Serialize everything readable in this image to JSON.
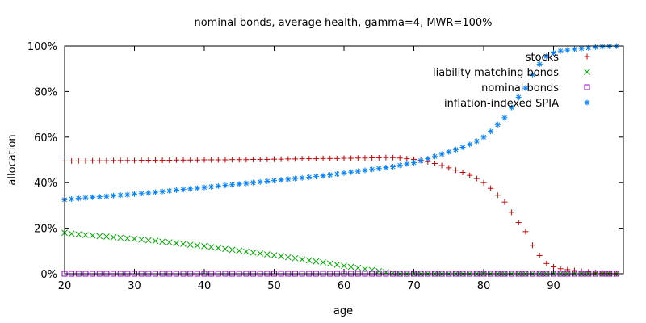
{
  "chart_data": {
    "type": "scatter",
    "title": "nominal bonds, average health, gamma=4, MWR=100%",
    "xlabel": "age",
    "ylabel": "allocation",
    "xlim": [
      20,
      100
    ],
    "ylim": [
      0,
      100
    ],
    "x_ticks": [
      "20",
      "30",
      "40",
      "50",
      "60",
      "70",
      "80",
      "90"
    ],
    "x_tick_values": [
      20,
      30,
      40,
      50,
      60,
      70,
      80,
      90
    ],
    "y_ticks": [
      "0%",
      "20%",
      "40%",
      "60%",
      "80%",
      "100%"
    ],
    "y_tick_values": [
      0,
      20,
      40,
      60,
      80,
      100
    ],
    "legend_position": "top-right",
    "x": [
      20,
      21,
      22,
      23,
      24,
      25,
      26,
      27,
      28,
      29,
      30,
      31,
      32,
      33,
      34,
      35,
      36,
      37,
      38,
      39,
      40,
      41,
      42,
      43,
      44,
      45,
      46,
      47,
      48,
      49,
      50,
      51,
      52,
      53,
      54,
      55,
      56,
      57,
      58,
      59,
      60,
      61,
      62,
      63,
      64,
      65,
      66,
      67,
      68,
      69,
      70,
      71,
      72,
      73,
      74,
      75,
      76,
      77,
      78,
      79,
      80,
      81,
      82,
      83,
      84,
      85,
      86,
      87,
      88,
      89,
      90,
      91,
      92,
      93,
      94,
      95,
      96,
      97,
      98,
      99
    ],
    "series": [
      {
        "name": "stocks",
        "marker": "plus",
        "color": "#cc0000",
        "values": [
          49.5,
          49.5,
          49.5,
          49.5,
          49.6,
          49.6,
          49.6,
          49.7,
          49.7,
          49.7,
          49.7,
          49.8,
          49.8,
          49.8,
          49.8,
          49.8,
          49.9,
          49.9,
          49.9,
          49.9,
          50.0,
          50.0,
          50.0,
          50.0,
          50.1,
          50.1,
          50.1,
          50.2,
          50.2,
          50.2,
          50.3,
          50.3,
          50.4,
          50.4,
          50.5,
          50.5,
          50.5,
          50.6,
          50.6,
          50.6,
          50.7,
          50.7,
          50.8,
          50.8,
          50.9,
          50.9,
          51.0,
          51.0,
          50.8,
          50.5,
          50.2,
          49.8,
          49.2,
          48.4,
          47.5,
          46.5,
          45.5,
          44.5,
          43.2,
          41.8,
          40.0,
          37.5,
          34.5,
          31.5,
          27.0,
          22.5,
          18.5,
          12.5,
          8.0,
          4.5,
          3.0,
          2.2,
          1.8,
          1.4,
          1.1,
          0.8,
          0.5,
          0.3,
          0.2,
          0.1
        ]
      },
      {
        "name": "liability matching bonds",
        "marker": "cross",
        "color": "#00aa00",
        "values": [
          18.0,
          17.6,
          17.3,
          17.0,
          16.8,
          16.5,
          16.3,
          16.0,
          15.8,
          15.5,
          15.3,
          15.0,
          14.7,
          14.4,
          14.1,
          13.8,
          13.4,
          13.1,
          12.7,
          12.4,
          12.1,
          11.7,
          11.3,
          10.9,
          10.5,
          10.1,
          9.7,
          9.3,
          8.9,
          8.5,
          8.1,
          7.7,
          7.2,
          6.8,
          6.3,
          5.9,
          5.4,
          5.0,
          4.5,
          4.0,
          3.5,
          3.0,
          2.6,
          2.1,
          1.6,
          1.1,
          0.7,
          0.2,
          0.0,
          0.0,
          0.0,
          0.0,
          0.0,
          0.0,
          0.0,
          0.0,
          0.0,
          0.0,
          0.0,
          0.0,
          0.0,
          0.0,
          0.0,
          0.0,
          0.0,
          0.0,
          0.0,
          0.0,
          0.0,
          0.0,
          0.0,
          0.0,
          0.0,
          0.0,
          0.0,
          0.0,
          0.0,
          0.0,
          0.0,
          0.0
        ]
      },
      {
        "name": "nominal bonds",
        "marker": "square",
        "color": "#9900cc",
        "values": [
          0,
          0,
          0,
          0,
          0,
          0,
          0,
          0,
          0,
          0,
          0,
          0,
          0,
          0,
          0,
          0,
          0,
          0,
          0,
          0,
          0,
          0,
          0,
          0,
          0,
          0,
          0,
          0,
          0,
          0,
          0,
          0,
          0,
          0,
          0,
          0,
          0,
          0,
          0,
          0,
          0,
          0,
          0,
          0,
          0,
          0,
          0,
          0,
          0,
          0,
          0,
          0,
          0,
          0,
          0,
          0,
          0,
          0,
          0,
          0,
          0,
          0,
          0,
          0,
          0,
          0,
          0,
          0,
          0,
          0,
          0,
          0,
          0,
          0,
          0,
          0,
          0,
          0,
          0,
          0
        ]
      },
      {
        "name": "inflation-indexed SPIA",
        "marker": "star",
        "color": "#0080ff",
        "values": [
          32.5,
          32.8,
          33.1,
          33.3,
          33.6,
          33.8,
          34.0,
          34.3,
          34.5,
          34.7,
          35.0,
          35.2,
          35.5,
          35.8,
          36.1,
          36.4,
          36.7,
          37.0,
          37.3,
          37.6,
          37.9,
          38.2,
          38.5,
          38.8,
          39.1,
          39.4,
          39.7,
          40.0,
          40.3,
          40.6,
          40.9,
          41.2,
          41.5,
          41.8,
          42.1,
          42.4,
          42.7,
          43.0,
          43.4,
          43.8,
          44.2,
          44.6,
          45.0,
          45.4,
          45.8,
          46.2,
          46.6,
          47.0,
          47.6,
          48.2,
          48.8,
          49.6,
          50.5,
          51.5,
          52.5,
          53.5,
          54.5,
          55.5,
          56.8,
          58.2,
          60.0,
          62.5,
          65.5,
          68.5,
          73.0,
          77.5,
          81.5,
          87.5,
          92.0,
          95.5,
          97.0,
          97.8,
          98.2,
          98.6,
          98.9,
          99.2,
          99.5,
          99.7,
          99.8,
          99.9
        ]
      }
    ]
  }
}
